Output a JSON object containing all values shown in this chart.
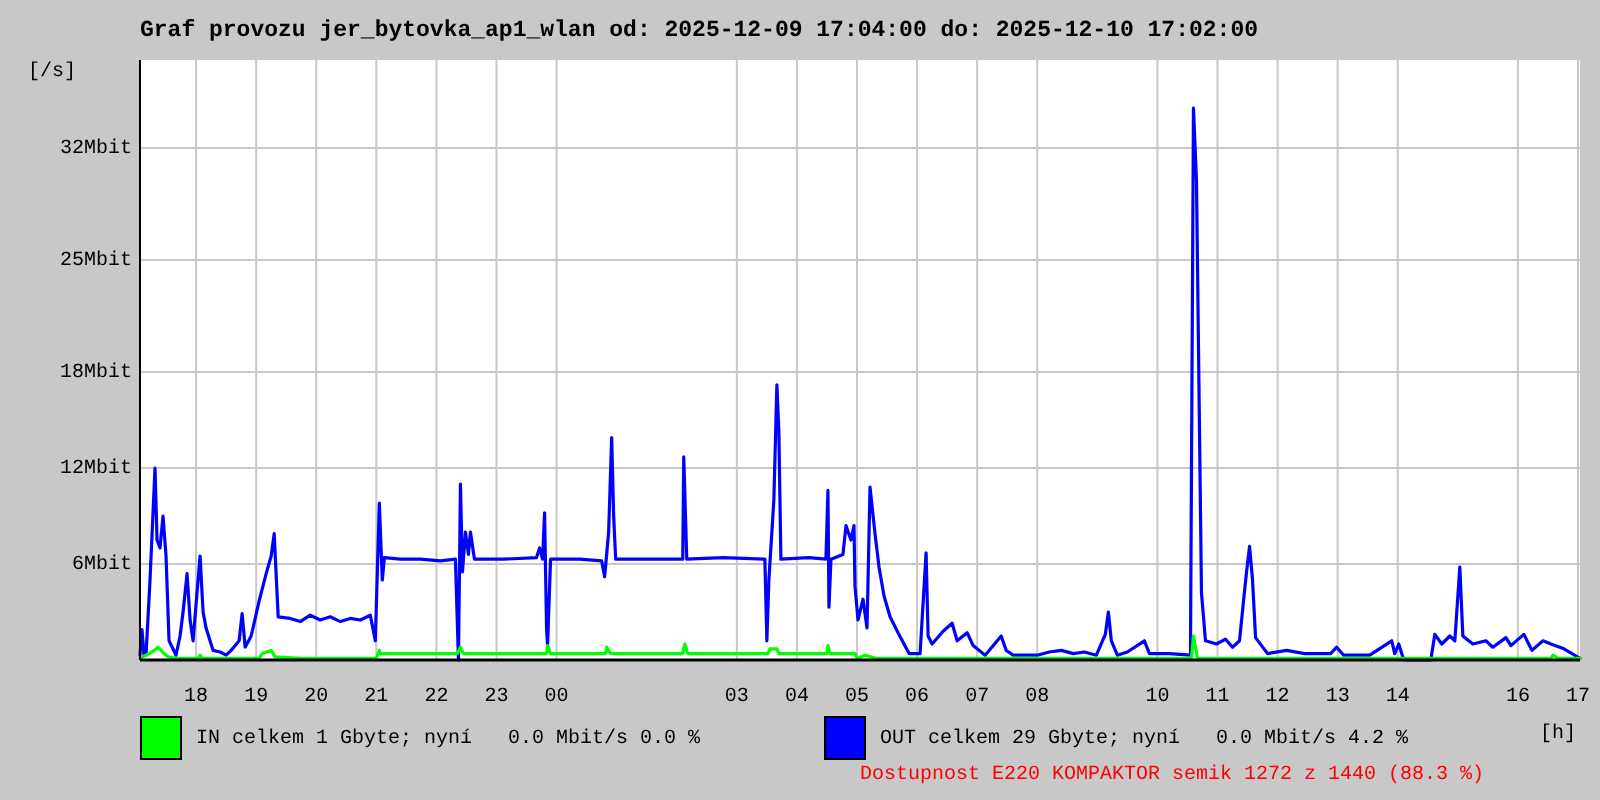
{
  "chart_data": {
    "type": "line",
    "title": "Graf provozu jer_bytovka_ap1_wlan od: 2025-12-09 17:04:00 do: 2025-12-10 17:02:00",
    "xlabel": "[h]",
    "ylabel": "[/s]",
    "xlim": [
      "2025-12-09T17:04",
      "2025-12-10T17:02"
    ],
    "xticks": [
      {
        "value": "2025-12-09T18:00",
        "label": "18"
      },
      {
        "value": "2025-12-09T19:00",
        "label": "19"
      },
      {
        "value": "2025-12-09T20:00",
        "label": "20"
      },
      {
        "value": "2025-12-09T21:00",
        "label": "21"
      },
      {
        "value": "2025-12-09T22:00",
        "label": "22"
      },
      {
        "value": "2025-12-09T23:00",
        "label": "23"
      },
      {
        "value": "2025-12-10T00:00",
        "label": "00"
      },
      {
        "value": "2025-12-10T03:00",
        "label": "03"
      },
      {
        "value": "2025-12-10T04:00",
        "label": "04"
      },
      {
        "value": "2025-12-10T05:00",
        "label": "05"
      },
      {
        "value": "2025-12-10T06:00",
        "label": "06"
      },
      {
        "value": "2025-12-10T07:00",
        "label": "07"
      },
      {
        "value": "2025-12-10T08:00",
        "label": "08"
      },
      {
        "value": "2025-12-10T10:00",
        "label": "10"
      },
      {
        "value": "2025-12-10T11:00",
        "label": "11"
      },
      {
        "value": "2025-12-10T12:00",
        "label": "12"
      },
      {
        "value": "2025-12-10T13:00",
        "label": "13"
      },
      {
        "value": "2025-12-10T14:00",
        "label": "14"
      },
      {
        "value": "2025-12-10T16:00",
        "label": "16"
      },
      {
        "value": "2025-12-10T17:00",
        "label": "17"
      }
    ],
    "ylim": [
      0,
      37.5
    ],
    "yticks": [
      {
        "value": 6,
        "label": "6Mbit"
      },
      {
        "value": 12,
        "label": "12Mbit"
      },
      {
        "value": 18,
        "label": "18Mbit"
      },
      {
        "value": 25,
        "label": "25Mbit"
      },
      {
        "value": 32,
        "label": "32Mbit"
      }
    ],
    "grid": true,
    "legend": "bottom",
    "series": [
      {
        "name": "IN celkem 1 Gbyte; nyní   0.0 Mbit/s 0.0 %",
        "color": "#00ff00",
        "x": [
          "2025-12-09T17:04",
          "2025-12-09T17:16",
          "2025-12-09T17:22",
          "2025-12-09T17:28",
          "2025-12-09T17:32",
          "2025-12-09T17:40",
          "2025-12-09T18:02",
          "2025-12-09T18:04",
          "2025-12-09T18:06",
          "2025-12-09T19:03",
          "2025-12-09T19:06",
          "2025-12-09T19:15",
          "2025-12-09T19:19",
          "2025-12-09T19:44",
          "2025-12-09T21:00",
          "2025-12-09T21:03",
          "2025-12-09T21:04",
          "2025-12-09T22:21",
          "2025-12-09T22:24",
          "2025-12-09T22:27",
          "2025-12-09T23:50",
          "2025-12-09T23:51",
          "2025-12-09T23:54",
          "2025-12-10T00:49",
          "2025-12-10T00:50",
          "2025-12-10T00:54",
          "2025-12-10T02:06",
          "2025-12-10T02:08",
          "2025-12-10T02:11",
          "2025-12-10T03:31",
          "2025-12-10T03:33",
          "2025-12-10T03:40",
          "2025-12-10T03:42",
          "2025-12-10T04:30",
          "2025-12-10T04:31",
          "2025-12-10T04:33",
          "2025-12-10T04:58",
          "2025-12-10T05:00",
          "2025-12-10T05:08",
          "2025-12-10T05:19",
          "2025-12-10T10:34",
          "2025-12-10T10:36",
          "2025-12-10T10:40",
          "2025-12-10T16:33",
          "2025-12-10T16:35",
          "2025-12-10T16:40",
          "2025-12-10T17:02"
        ],
        "values": [
          0.1,
          0.5,
          0.8,
          0.4,
          0.2,
          0.1,
          0.1,
          0.3,
          0.1,
          0.1,
          0.4,
          0.6,
          0.2,
          0.1,
          0.1,
          0.6,
          0.4,
          0.4,
          0.8,
          0.4,
          0.4,
          0.9,
          0.4,
          0.4,
          0.8,
          0.4,
          0.4,
          1.0,
          0.4,
          0.4,
          0.7,
          0.7,
          0.4,
          0.4,
          0.9,
          0.4,
          0.4,
          0.1,
          0.3,
          0.1,
          0.1,
          1.5,
          0.1,
          0.1,
          0.3,
          0.1,
          0.1
        ]
      },
      {
        "name": "OUT celkem 29 Gbyte; nyní   0.0 Mbit/s 4.2 %",
        "color": "#0000ff",
        "x": [
          "2025-12-09T17:04",
          "2025-12-09T17:06",
          "2025-12-09T17:08",
          "2025-12-09T17:10",
          "2025-12-09T17:14",
          "2025-12-09T17:19",
          "2025-12-09T17:21",
          "2025-12-09T17:24",
          "2025-12-09T17:27",
          "2025-12-09T17:30",
          "2025-12-09T17:33",
          "2025-12-09T17:40",
          "2025-12-09T17:44",
          "2025-12-09T17:47",
          "2025-12-09T17:51",
          "2025-12-09T17:54",
          "2025-12-09T17:57",
          "2025-12-09T18:00",
          "2025-12-09T18:04",
          "2025-12-09T18:07",
          "2025-12-09T18:10",
          "2025-12-09T18:17",
          "2025-12-09T18:24",
          "2025-12-09T18:30",
          "2025-12-09T18:35",
          "2025-12-09T18:43",
          "2025-12-09T18:46",
          "2025-12-09T18:49",
          "2025-12-09T18:55",
          "2025-12-09T19:03",
          "2025-12-09T19:10",
          "2025-12-09T19:15",
          "2025-12-09T19:18",
          "2025-12-09T19:22",
          "2025-12-09T19:34",
          "2025-12-09T19:44",
          "2025-12-09T19:54",
          "2025-12-09T20:04",
          "2025-12-09T20:14",
          "2025-12-09T20:24",
          "2025-12-09T20:34",
          "2025-12-09T20:44",
          "2025-12-09T20:54",
          "2025-12-09T20:59",
          "2025-12-09T21:03",
          "2025-12-09T21:05",
          "2025-12-09T21:06",
          "2025-12-09T21:08",
          "2025-12-09T21:24",
          "2025-12-09T21:44",
          "2025-12-09T22:04",
          "2025-12-09T22:19",
          "2025-12-09T22:22",
          "2025-12-09T22:24",
          "2025-12-09T22:26",
          "2025-12-09T22:29",
          "2025-12-09T22:32",
          "2025-12-09T22:34",
          "2025-12-09T22:38",
          "2025-12-09T23:07",
          "2025-12-09T23:40",
          "2025-12-09T23:43",
          "2025-12-09T23:46",
          "2025-12-09T23:48",
          "2025-12-09T23:50",
          "2025-12-09T23:51",
          "2025-12-09T23:54",
          "2025-12-10T00:23",
          "2025-12-10T00:45",
          "2025-12-10T00:48",
          "2025-12-10T00:52",
          "2025-12-10T00:55",
          "2025-12-10T00:57",
          "2025-12-10T00:59",
          "2025-12-10T01:29",
          "2025-12-10T02:06",
          "2025-12-10T02:07",
          "2025-12-10T02:10",
          "2025-12-10T02:46",
          "2025-12-10T03:28",
          "2025-12-10T03:30",
          "2025-12-10T03:32",
          "2025-12-10T03:35",
          "2025-12-10T03:37",
          "2025-12-10T03:40",
          "2025-12-10T03:42",
          "2025-12-10T03:44",
          "2025-12-10T04:12",
          "2025-12-10T04:29",
          "2025-12-10T04:31",
          "2025-12-10T04:32",
          "2025-12-10T04:34",
          "2025-12-10T04:46",
          "2025-12-10T04:49",
          "2025-12-10T04:54",
          "2025-12-10T04:57",
          "2025-12-10T04:58",
          "2025-12-10T05:01",
          "2025-12-10T05:06",
          "2025-12-10T05:10",
          "2025-12-10T05:13",
          "2025-12-10T05:18",
          "2025-12-10T05:22",
          "2025-12-10T05:27",
          "2025-12-10T05:33",
          "2025-12-10T05:41",
          "2025-12-10T05:52",
          "2025-12-10T06:03",
          "2025-12-10T06:09",
          "2025-12-10T06:11",
          "2025-12-10T06:15",
          "2025-12-10T06:26",
          "2025-12-10T06:35",
          "2025-12-10T06:40",
          "2025-12-10T06:50",
          "2025-12-10T06:56",
          "2025-12-10T07:08",
          "2025-12-10T07:24",
          "2025-12-10T07:29",
          "2025-12-10T07:36",
          "2025-12-10T08:00",
          "2025-12-10T08:12",
          "2025-12-10T08:24",
          "2025-12-10T08:36",
          "2025-12-10T08:47",
          "2025-12-10T08:59",
          "2025-12-10T09:08",
          "2025-12-10T09:11",
          "2025-12-10T09:14",
          "2025-12-10T09:20",
          "2025-12-10T09:30",
          "2025-12-10T09:47",
          "2025-12-10T09:52",
          "2025-12-10T10:12",
          "2025-12-10T10:33",
          "2025-12-10T10:36",
          "2025-12-10T10:39",
          "2025-12-10T10:44",
          "2025-12-10T10:48",
          "2025-12-10T10:59",
          "2025-12-10T11:08",
          "2025-12-10T11:15",
          "2025-12-10T11:22",
          "2025-12-10T11:26",
          "2025-12-10T11:29",
          "2025-12-10T11:32",
          "2025-12-10T11:35",
          "2025-12-10T11:38",
          "2025-12-10T11:50",
          "2025-12-10T12:09",
          "2025-12-10T12:27",
          "2025-12-10T12:53",
          "2025-12-10T12:59",
          "2025-12-10T13:06",
          "2025-12-10T13:32",
          "2025-12-10T13:54",
          "2025-12-10T13:57",
          "2025-12-10T14:01",
          "2025-12-10T14:06",
          "2025-12-10T14:33",
          "2025-12-10T14:37",
          "2025-12-10T14:44",
          "2025-12-10T14:52",
          "2025-12-10T14:57",
          "2025-12-10T15:02",
          "2025-12-10T15:05",
          "2025-12-10T15:15",
          "2025-12-10T15:28",
          "2025-12-10T15:35",
          "2025-12-10T15:48",
          "2025-12-10T15:53",
          "2025-12-10T16:06",
          "2025-12-10T16:14",
          "2025-12-10T16:25",
          "2025-12-10T16:33",
          "2025-12-10T16:46",
          "2025-12-10T17:02"
        ],
        "values": [
          0.3,
          1.9,
          0.3,
          0.3,
          5.0,
          12.0,
          7.5,
          7.0,
          9.0,
          6.5,
          1.2,
          0.3,
          1.5,
          3.0,
          5.4,
          2.5,
          1.2,
          3.5,
          6.5,
          3.0,
          2.0,
          0.6,
          0.5,
          0.3,
          0.6,
          1.2,
          2.9,
          0.8,
          1.5,
          3.7,
          5.4,
          6.5,
          7.9,
          2.7,
          2.6,
          2.4,
          2.8,
          2.5,
          2.7,
          2.4,
          2.6,
          2.5,
          2.8,
          1.2,
          9.8,
          6.5,
          5.0,
          6.4,
          6.3,
          6.3,
          6.2,
          6.3,
          0,
          11.0,
          5.5,
          8.0,
          6.6,
          8.0,
          6.3,
          6.3,
          6.4,
          7.0,
          6.3,
          9.2,
          2.0,
          0.9,
          6.3,
          6.3,
          6.2,
          5.2,
          8.0,
          13.9,
          9.0,
          6.3,
          6.3,
          6.3,
          12.7,
          6.3,
          6.4,
          6.3,
          1.2,
          5.0,
          8.0,
          10.0,
          17.2,
          14.2,
          6.3,
          6.4,
          6.3,
          10.6,
          3.3,
          6.3,
          6.6,
          8.4,
          7.5,
          8.4,
          4.6,
          2.5,
          3.8,
          2.0,
          10.8,
          7.9,
          5.8,
          4.0,
          2.7,
          1.7,
          0.4,
          0.4,
          6.7,
          1.5,
          1.0,
          1.8,
          2.3,
          1.2,
          1.7,
          0.9,
          0.3,
          1.5,
          0.6,
          0.3,
          0.3,
          0.5,
          0.6,
          0.4,
          0.5,
          0.3,
          1.6,
          3.0,
          1.2,
          0.3,
          0.5,
          1.2,
          0.4,
          0.4,
          0.3,
          34.5,
          30.0,
          4.2,
          1.2,
          1.0,
          1.3,
          0.8,
          1.2,
          3.7,
          5.5,
          7.1,
          5.0,
          1.4,
          0.4,
          0.6,
          0.4,
          0.4,
          0.8,
          0.3,
          0.3,
          1.2,
          0.4,
          1.0,
          0,
          0,
          1.6,
          1.0,
          1.5,
          1.2,
          5.8,
          1.5,
          1.0,
          1.2,
          0.8,
          1.4,
          0.9,
          1.6,
          0.6,
          1.2,
          1.0,
          0.7,
          0.1
        ]
      }
    ],
    "annotations": [
      "Dostupnost E220 KOMPAKTOR semik 1272 z 1440 (88.3 %)"
    ]
  }
}
